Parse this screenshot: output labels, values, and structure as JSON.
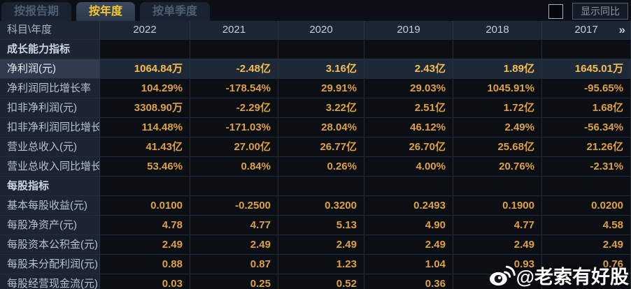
{
  "tabs": [
    {
      "label": "按报告期",
      "active": false
    },
    {
      "label": "按年度",
      "active": true
    },
    {
      "label": "按单季度",
      "active": false
    }
  ],
  "controls": {
    "show_yoy_label": "显示同比",
    "checkbox_checked": false
  },
  "table": {
    "corner_label": "科目\\年度",
    "years": [
      "2022",
      "2021",
      "2020",
      "2019",
      "2018",
      "2017"
    ],
    "more_icon": "»",
    "rows": [
      {
        "type": "section",
        "label": "成长能力指标",
        "values": [
          "",
          "",
          "",
          "",
          "",
          ""
        ]
      },
      {
        "type": "data",
        "highlight": true,
        "label": "净利润(元)",
        "values": [
          "1064.84万",
          "-2.48亿",
          "3.16亿",
          "2.43亿",
          "1.89亿",
          "1645.01万"
        ]
      },
      {
        "type": "data",
        "label": "净利润同比增长率",
        "values": [
          "104.29%",
          "-178.54%",
          "29.91%",
          "29.03%",
          "1045.91%",
          "-95.65%"
        ]
      },
      {
        "type": "data",
        "label": "扣非净利润(元)",
        "values": [
          "3308.90万",
          "-2.29亿",
          "3.22亿",
          "2.51亿",
          "1.72亿",
          "1.68亿"
        ]
      },
      {
        "type": "data",
        "label": "扣非净利润同比增长率",
        "values": [
          "114.48%",
          "-171.03%",
          "28.04%",
          "46.12%",
          "2.49%",
          "-56.34%"
        ]
      },
      {
        "type": "data",
        "label": "营业总收入(元)",
        "values": [
          "41.43亿",
          "27.00亿",
          "26.77亿",
          "26.70亿",
          "25.68亿",
          "21.26亿"
        ]
      },
      {
        "type": "data",
        "label": "营业总收入同比增长率",
        "values": [
          "53.46%",
          "0.84%",
          "0.26%",
          "4.00%",
          "20.76%",
          "-2.31%"
        ]
      },
      {
        "type": "section",
        "label": "每股指标",
        "values": [
          "",
          "",
          "",
          "",
          "",
          ""
        ]
      },
      {
        "type": "data",
        "label": "基本每股收益(元)",
        "values": [
          "0.0100",
          "-0.2500",
          "0.3200",
          "0.2493",
          "0.1900",
          "0.0200"
        ]
      },
      {
        "type": "data",
        "label": "每股净资产(元)",
        "values": [
          "4.78",
          "4.77",
          "5.13",
          "4.90",
          "4.77",
          "4.58"
        ]
      },
      {
        "type": "data",
        "label": "每股资本公积金(元)",
        "values": [
          "2.49",
          "2.49",
          "2.49",
          "2.49",
          "2.49",
          "2.49"
        ]
      },
      {
        "type": "data",
        "label": "每股未分配利润(元)",
        "values": [
          "0.88",
          "0.87",
          "1.23",
          "1.04",
          "0.93",
          "0.76"
        ]
      },
      {
        "type": "data",
        "label": "每股经营现金流(元)",
        "values": [
          "0.03",
          "0.25",
          "0.52",
          "0.36",
          "",
          ""
        ]
      }
    ]
  },
  "watermark": {
    "icon": "weibo-icon",
    "text": "@老索有好股"
  },
  "colors": {
    "active_tab_text": "#f7c72e",
    "value_orange": "#dda142",
    "highlight_value_gold": "#f6bf4b",
    "highlight_row_bg": "#2e3c4e",
    "header_bg": "#1c2533",
    "data_cell_bg": "#0b0e13"
  }
}
